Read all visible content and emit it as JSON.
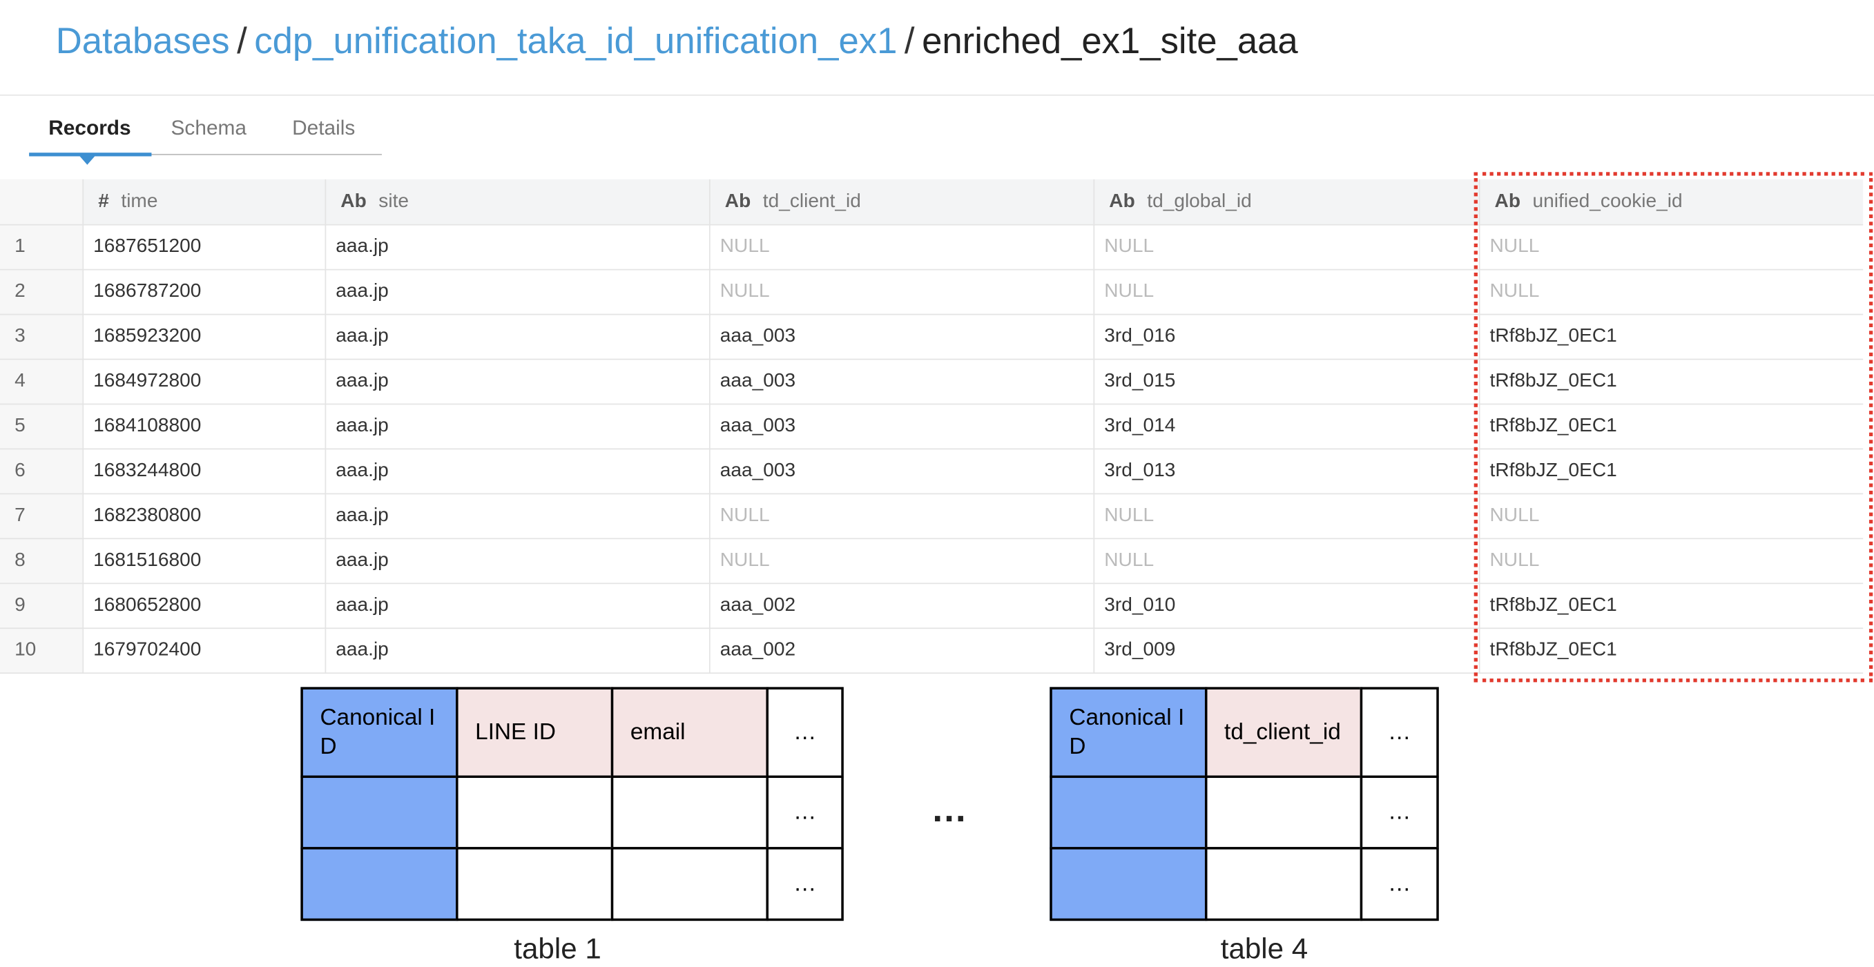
{
  "breadcrumb": {
    "links": [
      "Databases",
      "cdp_unification_taka_id_unification_ex1"
    ],
    "separators": [
      "/",
      "/"
    ],
    "current": "enriched_ex1_site_aaa"
  },
  "tabs": [
    "Records",
    "Schema",
    "Details"
  ],
  "table": {
    "columns": [
      {
        "icon": "#",
        "name": "time"
      },
      {
        "icon": "Ab",
        "name": "site"
      },
      {
        "icon": "Ab",
        "name": "td_client_id"
      },
      {
        "icon": "Ab",
        "name": "td_global_id"
      },
      {
        "icon": "Ab",
        "name": "unified_cookie_id"
      }
    ],
    "rows": [
      [
        "1",
        "1687651200",
        "aaa.jp",
        "NULL",
        "NULL",
        "NULL"
      ],
      [
        "2",
        "1686787200",
        "aaa.jp",
        "NULL",
        "NULL",
        "NULL"
      ],
      [
        "3",
        "1685923200",
        "aaa.jp",
        "aaa_003",
        "3rd_016",
        "tRf8bJZ_0EC1"
      ],
      [
        "4",
        "1684972800",
        "aaa.jp",
        "aaa_003",
        "3rd_015",
        "tRf8bJZ_0EC1"
      ],
      [
        "5",
        "1684108800",
        "aaa.jp",
        "aaa_003",
        "3rd_014",
        "tRf8bJZ_0EC1"
      ],
      [
        "6",
        "1683244800",
        "aaa.jp",
        "aaa_003",
        "3rd_013",
        "tRf8bJZ_0EC1"
      ],
      [
        "7",
        "1682380800",
        "aaa.jp",
        "NULL",
        "NULL",
        "NULL"
      ],
      [
        "8",
        "1681516800",
        "aaa.jp",
        "NULL",
        "NULL",
        "NULL"
      ],
      [
        "9",
        "1680652800",
        "aaa.jp",
        "aaa_002",
        "3rd_010",
        "tRf8bJZ_0EC1"
      ],
      [
        "10",
        "1679702400",
        "aaa.jp",
        "aaa_002",
        "3rd_009",
        "tRf8bJZ_0EC1"
      ]
    ]
  },
  "diagram": {
    "tables": [
      {
        "header": [
          "Canonical ID",
          "LINE ID",
          "email",
          "…"
        ],
        "rows": [
          "…",
          "…"
        ],
        "caption": "table 1"
      },
      {
        "header": [
          "Canonical ID",
          "td_client_id",
          "…"
        ],
        "rows": [
          "…",
          "…"
        ],
        "caption": "table 4"
      }
    ],
    "ellipsis": "…"
  }
}
